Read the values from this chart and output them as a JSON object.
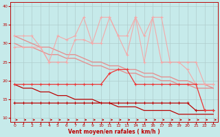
{
  "x": [
    0,
    1,
    2,
    3,
    4,
    5,
    6,
    7,
    8,
    9,
    10,
    11,
    12,
    13,
    14,
    15,
    16,
    17,
    18,
    19,
    20,
    21,
    22,
    23
  ],
  "line_pink1": [
    32,
    32,
    32,
    29,
    25,
    32,
    31,
    32,
    37,
    30,
    37,
    37,
    32,
    32,
    37,
    32,
    37,
    37,
    25,
    25,
    25,
    25,
    19,
    19
  ],
  "line_pink2": [
    29,
    29,
    29,
    29,
    25,
    25,
    25,
    31,
    31,
    30,
    30,
    37,
    32,
    27,
    37,
    25,
    37,
    25,
    25,
    25,
    23,
    19,
    19,
    19
  ],
  "trend1": [
    32,
    31,
    30,
    29,
    29,
    28,
    27,
    27,
    26,
    25,
    25,
    24,
    24,
    23,
    23,
    22,
    22,
    21,
    21,
    20,
    20,
    19,
    19,
    18
  ],
  "trend2": [
    30,
    29,
    29,
    28,
    27,
    27,
    26,
    26,
    25,
    24,
    24,
    23,
    23,
    22,
    22,
    21,
    21,
    20,
    20,
    19,
    19,
    18,
    18,
    18
  ],
  "line_red": [
    19,
    19,
    19,
    19,
    19,
    19,
    19,
    19,
    19,
    19,
    19,
    22,
    23,
    23,
    19,
    19,
    19,
    19,
    19,
    19,
    19,
    19,
    12,
    12
  ],
  "line_darkred_flat": [
    14,
    14,
    14,
    14,
    14,
    14,
    14,
    14,
    14,
    14,
    14,
    14,
    14,
    14,
    14,
    14,
    14,
    14,
    14,
    14,
    14,
    12,
    12,
    12
  ],
  "line_darkred_trend": [
    19,
    18,
    18,
    17,
    17,
    16,
    16,
    15,
    15,
    15,
    14,
    14,
    13,
    13,
    13,
    12,
    12,
    12,
    12,
    11,
    11,
    11,
    11,
    11
  ],
  "bg_color": "#c6eaea",
  "grid_color": "#b0cccc",
  "color_pink": "#f4a8a8",
  "color_med_pink": "#e88888",
  "color_bright_red": "#ee3333",
  "color_dark_red": "#bb0000",
  "xlabel": "Vent moyen/en rafales ( km/h )",
  "ylim": [
    9,
    41
  ],
  "xlim": [
    -0.5,
    23.5
  ],
  "yticks": [
    10,
    15,
    20,
    25,
    30,
    35,
    40
  ],
  "xticks": [
    0,
    1,
    2,
    3,
    4,
    5,
    6,
    7,
    8,
    9,
    10,
    11,
    12,
    13,
    14,
    15,
    16,
    17,
    18,
    19,
    20,
    21,
    22,
    23
  ]
}
